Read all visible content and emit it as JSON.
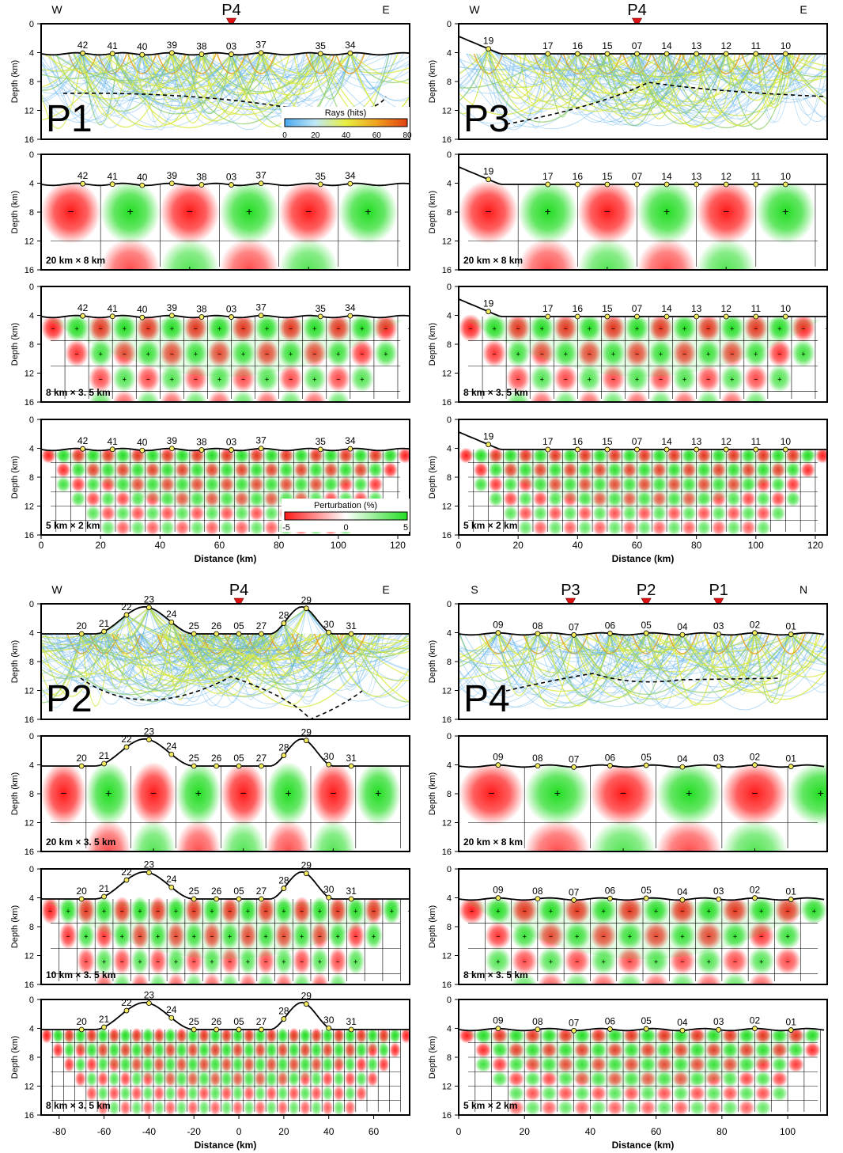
{
  "figure": {
    "depth_axis_label": "Depth (km)",
    "distance_axis_label": "Distance (km)",
    "depth_ticks": [
      "0",
      "4",
      "8",
      "12",
      "16"
    ],
    "rays_colorbar": {
      "title": "Rays (hits)",
      "ticks": [
        "0",
        "20",
        "40",
        "60",
        "80"
      ],
      "colors": [
        "#4aa8f0",
        "#bfe8f5",
        "#e8ee40",
        "#f0a020",
        "#e04010"
      ]
    },
    "perturbation_colorbar": {
      "title": "Perturbation (%)",
      "ticks": [
        "-5",
        "0",
        "5"
      ],
      "colors": [
        "#ff1a1a",
        "#ffffff",
        "#22dd22"
      ]
    },
    "colors": {
      "red": "#ff1a1a",
      "green": "#22dd22",
      "ray_blue": "#5ab0ea",
      "ray_yellow": "#d8e840",
      "marker_red": "#dd1111",
      "station_yellow": "#f4ec60"
    },
    "blocks": [
      {
        "id": "P1",
        "name": "P1",
        "dir_left": "W",
        "dir_right": "E",
        "markers": [
          "P4"
        ],
        "stations": [
          "42",
          "41",
          "40",
          "39",
          "38",
          "03",
          "37",
          "35",
          "34"
        ],
        "distance_ticks": [
          "0",
          "20",
          "40",
          "60",
          "80",
          "100",
          "120"
        ],
        "resolutions": [
          "20 km × 8 km",
          "8 km × 3. 5 km",
          "5 km × 2 km"
        ]
      },
      {
        "id": "P3",
        "name": "P3",
        "dir_left": "W",
        "dir_right": "E",
        "markers": [
          "P4"
        ],
        "stations": [
          "19",
          "17",
          "16",
          "15",
          "07",
          "14",
          "13",
          "12",
          "11",
          "10"
        ],
        "distance_ticks": [
          "0",
          "20",
          "40",
          "60",
          "80",
          "100",
          "120"
        ],
        "resolutions": [
          "20 km × 8 km",
          "8 km × 3. 5 km",
          "5 km × 2 km"
        ]
      },
      {
        "id": "P2",
        "name": "P2",
        "dir_left": "W",
        "dir_right": "E",
        "markers": [
          "P4"
        ],
        "stations": [
          "20",
          "21",
          "22",
          "23",
          "24",
          "25",
          "26",
          "05",
          "27",
          "28",
          "29",
          "30",
          "31"
        ],
        "distance_ticks": [
          "-80",
          "-60",
          "-40",
          "-20",
          "0",
          "20",
          "40",
          "60"
        ],
        "resolutions": [
          "20 km × 3. 5 km",
          "10 km × 3. 5 km",
          "8 km × 3. 5 km"
        ]
      },
      {
        "id": "P4",
        "name": "P4",
        "dir_left": "S",
        "dir_right": "N",
        "markers": [
          "P3",
          "P2",
          "P1"
        ],
        "stations": [
          "09",
          "08",
          "07",
          "06",
          "05",
          "04",
          "03",
          "02",
          "01"
        ],
        "distance_ticks": [
          "0",
          "20",
          "40",
          "60",
          "80",
          "100"
        ],
        "resolutions": [
          "20 km × 8 km",
          "8 km × 3. 5 km",
          "5 km × 2 km"
        ]
      }
    ]
  }
}
